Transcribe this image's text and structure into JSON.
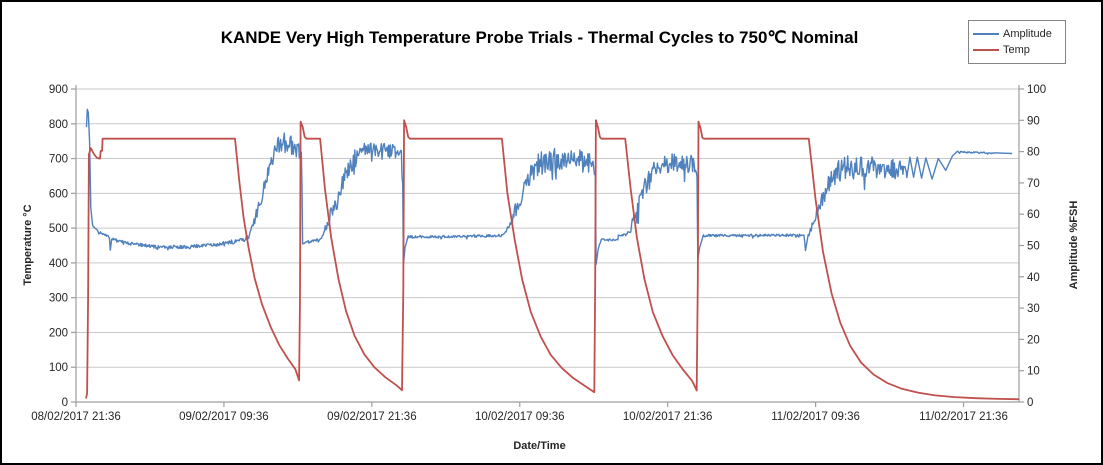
{
  "chart_data": {
    "type": "line",
    "title": "KANDE Very High Temperature Probe Trials - Thermal Cycles to 750℃ Nominal",
    "grid": true,
    "legend": {
      "position": "top-right",
      "items": [
        {
          "label": "Amplitude",
          "color": "#4F81BD"
        },
        {
          "label": "Temp",
          "color": "#C0504D"
        }
      ]
    },
    "x_axis": {
      "title": "Date/Time",
      "tick_labels": [
        "08/02/2017 21:36",
        "09/02/2017 09:36",
        "09/02/2017 21:36",
        "10/02/2017 09:36",
        "10/02/2017 21:36",
        "11/02/2017 09:36",
        "11/02/2017 21:36"
      ],
      "tick_hours": [
        0,
        12,
        24,
        36,
        48,
        60,
        72
      ],
      "range_hours": [
        0,
        76.5
      ],
      "hours_basis": "hours since 08/02/2017 21:36"
    },
    "y_axis_left": {
      "title": "Temperature °C",
      "min": 0,
      "max": 900,
      "step": 100,
      "tick_labels": [
        "0",
        "100",
        "200",
        "300",
        "400",
        "500",
        "600",
        "700",
        "800",
        "900"
      ]
    },
    "y_axis_right": {
      "title": "Amplitude %FSH",
      "min": 0,
      "max": 100,
      "step": 10,
      "tick_labels": [
        "0",
        "10",
        "20",
        "30",
        "40",
        "50",
        "60",
        "70",
        "80",
        "90",
        "100"
      ]
    },
    "colors": {
      "amplitude": "#4F81BD",
      "temp": "#C0504D",
      "gridline": "#c9c9c9",
      "axis_line": "#9e9e9e",
      "tick_text": "#262626",
      "background": "#ffffff",
      "frame_border": "#000000"
    },
    "series": [
      {
        "name": "Amplitude",
        "axis": "right",
        "units": "%FSH",
        "color": "#4F81BD",
        "points_h_pct_noise": [
          [
            0.85,
            88,
            0
          ],
          [
            0.92,
            93.5,
            0
          ],
          [
            1.0,
            92.5,
            0
          ],
          [
            1.1,
            83,
            0
          ],
          [
            1.2,
            62,
            0
          ],
          [
            1.35,
            56.5,
            0.4
          ],
          [
            1.8,
            54.5,
            0.4
          ],
          [
            2.6,
            53,
            0.4
          ],
          [
            2.72,
            52.5,
            0
          ],
          [
            2.78,
            48.5,
            0
          ],
          [
            2.9,
            52,
            0.5
          ],
          [
            4.5,
            50.5,
            0.5
          ],
          [
            6.5,
            49.6,
            0.5
          ],
          [
            9.0,
            49.5,
            0.5
          ],
          [
            11.0,
            50.3,
            0.6
          ],
          [
            12.5,
            51,
            0.7
          ],
          [
            13.6,
            51.8,
            0.9
          ],
          [
            14.0,
            53,
            1.2
          ],
          [
            14.5,
            58,
            1.8
          ],
          [
            15.0,
            65,
            2.4
          ],
          [
            15.5,
            72,
            2.8
          ],
          [
            15.9,
            78,
            3.0
          ],
          [
            16.3,
            81.5,
            3.0
          ],
          [
            16.9,
            83,
            3.0
          ],
          [
            17.5,
            82,
            3.0
          ],
          [
            18.0,
            80.5,
            2.8
          ],
          [
            18.28,
            79.5,
            1.2
          ],
          [
            18.33,
            68,
            0
          ],
          [
            18.38,
            50.5,
            0.4
          ],
          [
            18.6,
            51,
            0.4
          ],
          [
            19.3,
            51.5,
            0.5
          ],
          [
            19.85,
            52,
            0.9
          ],
          [
            20.1,
            54,
            1.2
          ],
          [
            20.5,
            58,
            2.0
          ],
          [
            21.0,
            63.5,
            2.6
          ],
          [
            21.6,
            70,
            3.0
          ],
          [
            22.2,
            75.5,
            3.0
          ],
          [
            22.8,
            78.5,
            2.8
          ],
          [
            23.4,
            80.3,
            2.6
          ],
          [
            24.4,
            80.6,
            2.5
          ],
          [
            25.5,
            80.4,
            2.5
          ],
          [
            26.4,
            80,
            1.4
          ],
          [
            26.5,
            70,
            0
          ],
          [
            26.56,
            44,
            0
          ],
          [
            26.7,
            49.5,
            0.3
          ],
          [
            26.95,
            52.8,
            0.4
          ],
          [
            29.5,
            52.8,
            0.4
          ],
          [
            32.0,
            53.0,
            0.4
          ],
          [
            34.6,
            53.2,
            0.5
          ],
          [
            34.9,
            54.5,
            1.2
          ],
          [
            35.4,
            59,
            2.2
          ],
          [
            36.0,
            65,
            2.8
          ],
          [
            36.6,
            71,
            3.2
          ],
          [
            37.2,
            75,
            3.5
          ],
          [
            38.0,
            77,
            3.6
          ],
          [
            39.0,
            78,
            3.6
          ],
          [
            40.0,
            77.3,
            3.6
          ],
          [
            41.0,
            77,
            3.4
          ],
          [
            42.0,
            76.2,
            1.8
          ],
          [
            42.13,
            72,
            0
          ],
          [
            42.19,
            44,
            0
          ],
          [
            42.35,
            48.5,
            0.3
          ],
          [
            42.6,
            51.8,
            0.35
          ],
          [
            43.95,
            51.8,
            0
          ],
          [
            44.0,
            53.4,
            0.35
          ],
          [
            44.6,
            53.4,
            0.6
          ],
          [
            44.95,
            55,
            1.6
          ],
          [
            45.5,
            61,
            2.6
          ],
          [
            46.1,
            68,
            3.0
          ],
          [
            46.7,
            73,
            3.0
          ],
          [
            47.4,
            75.8,
            3.0
          ],
          [
            48.3,
            76.6,
            3.0
          ],
          [
            49.3,
            76.4,
            2.8
          ],
          [
            50.2,
            75.8,
            1.6
          ],
          [
            50.38,
            72,
            0
          ],
          [
            50.44,
            45.5,
            0
          ],
          [
            50.6,
            49.5,
            0.3
          ],
          [
            50.9,
            53.2,
            0.4
          ],
          [
            54.0,
            53.2,
            0.4
          ],
          [
            57.5,
            53.3,
            0.4
          ],
          [
            59.05,
            53.2,
            0.3
          ],
          [
            59.18,
            48.7,
            0
          ],
          [
            59.4,
            53.5,
            1.0
          ],
          [
            59.9,
            58.5,
            2.0
          ],
          [
            60.5,
            64.5,
            2.8
          ],
          [
            61.1,
            70,
            3.4
          ],
          [
            61.8,
            73.5,
            3.8
          ],
          [
            62.6,
            75,
            4.0
          ],
          [
            63.6,
            75.6,
            4.0
          ],
          [
            64.7,
            75.4,
            4.0
          ],
          [
            65.8,
            75,
            3.6
          ],
          [
            66.8,
            74.6,
            2.8
          ],
          [
            67.25,
            74.5,
            1.2
          ],
          [
            67.4,
            71.8,
            0
          ],
          [
            67.65,
            78.2,
            0
          ],
          [
            67.95,
            71.8,
            0
          ],
          [
            68.25,
            78.2,
            0
          ],
          [
            68.6,
            71.5,
            0
          ],
          [
            68.95,
            78.0,
            0
          ],
          [
            69.45,
            71.2,
            0
          ],
          [
            69.95,
            77.8,
            0
          ],
          [
            70.55,
            74.0,
            0
          ],
          [
            71.1,
            78.6,
            0
          ],
          [
            71.45,
            79.9,
            0.25
          ],
          [
            73.9,
            79.6,
            0.25
          ],
          [
            74.5,
            79.4,
            0
          ],
          [
            75.9,
            79.4,
            0
          ]
        ]
      },
      {
        "name": "Temp",
        "axis": "left",
        "units": "°C",
        "color": "#C0504D",
        "points_h_degC": [
          [
            0.82,
            12
          ],
          [
            0.9,
            25
          ],
          [
            0.98,
            300
          ],
          [
            1.05,
            712
          ],
          [
            1.2,
            730
          ],
          [
            1.45,
            713
          ],
          [
            1.7,
            702
          ],
          [
            1.95,
            700
          ],
          [
            2.0,
            722
          ],
          [
            2.12,
            722
          ],
          [
            2.16,
            757
          ],
          [
            12.9,
            757
          ],
          [
            13.25,
            635
          ],
          [
            13.6,
            530
          ],
          [
            14.0,
            443
          ],
          [
            14.5,
            355
          ],
          [
            15.1,
            280
          ],
          [
            15.8,
            215
          ],
          [
            16.5,
            163
          ],
          [
            17.2,
            124
          ],
          [
            17.8,
            94
          ],
          [
            18.1,
            62
          ],
          [
            18.17,
            300
          ],
          [
            18.22,
            806
          ],
          [
            18.38,
            792
          ],
          [
            18.55,
            762
          ],
          [
            18.7,
            757
          ],
          [
            19.8,
            757
          ],
          [
            20.2,
            612
          ],
          [
            20.7,
            472
          ],
          [
            21.3,
            352
          ],
          [
            21.9,
            262
          ],
          [
            22.6,
            190
          ],
          [
            23.4,
            137
          ],
          [
            24.2,
            100
          ],
          [
            25.1,
            71
          ],
          [
            26.0,
            48
          ],
          [
            26.45,
            34
          ],
          [
            26.55,
            320
          ],
          [
            26.62,
            810
          ],
          [
            26.78,
            792
          ],
          [
            26.95,
            762
          ],
          [
            27.1,
            757
          ],
          [
            34.55,
            757
          ],
          [
            35.0,
            600
          ],
          [
            35.6,
            465
          ],
          [
            36.2,
            352
          ],
          [
            36.9,
            258
          ],
          [
            37.7,
            188
          ],
          [
            38.5,
            136
          ],
          [
            39.4,
            98
          ],
          [
            40.3,
            70
          ],
          [
            41.2,
            48
          ],
          [
            42.05,
            28
          ],
          [
            42.12,
            350
          ],
          [
            42.18,
            810
          ],
          [
            42.34,
            790
          ],
          [
            42.5,
            762
          ],
          [
            42.62,
            757
          ],
          [
            44.55,
            757
          ],
          [
            45.0,
            612
          ],
          [
            45.5,
            472
          ],
          [
            46.1,
            355
          ],
          [
            46.8,
            258
          ],
          [
            47.6,
            188
          ],
          [
            48.4,
            135
          ],
          [
            49.2,
            95
          ],
          [
            50.0,
            60
          ],
          [
            50.35,
            33
          ],
          [
            50.44,
            350
          ],
          [
            50.5,
            806
          ],
          [
            50.66,
            788
          ],
          [
            50.82,
            760
          ],
          [
            50.95,
            757
          ],
          [
            59.45,
            757
          ],
          [
            60.0,
            582
          ],
          [
            60.6,
            432
          ],
          [
            61.3,
            312
          ],
          [
            62.0,
            228
          ],
          [
            62.8,
            162
          ],
          [
            63.7,
            113
          ],
          [
            64.7,
            79
          ],
          [
            65.8,
            55
          ],
          [
            67.0,
            38
          ],
          [
            68.3,
            27
          ],
          [
            69.7,
            19
          ],
          [
            71.3,
            14
          ],
          [
            73.0,
            11
          ],
          [
            74.8,
            9
          ],
          [
            76.45,
            8
          ]
        ]
      }
    ]
  }
}
